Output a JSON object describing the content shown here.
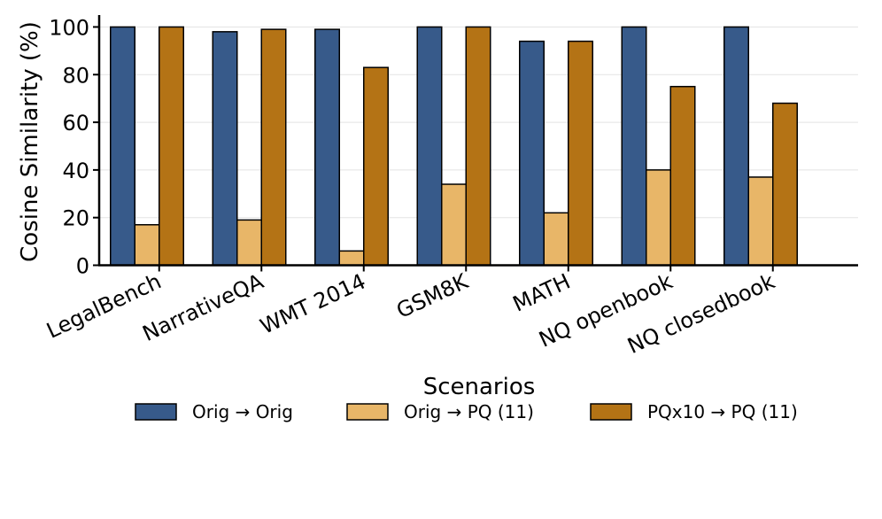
{
  "chart_data": {
    "type": "bar",
    "title": "",
    "xlabel": "Scenarios",
    "ylabel": "Cosine Similarity (%)",
    "ylim": [
      0,
      105
    ],
    "yticks": [
      0,
      20,
      40,
      60,
      80,
      100
    ],
    "ytick_labels": [
      "0",
      "20",
      "40",
      "60",
      "80",
      "100"
    ],
    "grid": "horizontal",
    "legend_position": "below",
    "categories": [
      "LegalBench",
      "NarrativeQA",
      "WMT 2014",
      "GSM8K",
      "MATH",
      "NQ openbook",
      "NQ closedbook"
    ],
    "series": [
      {
        "name": "Orig → Orig",
        "color": "#375a8a",
        "values": [
          100,
          98,
          99,
          100,
          94,
          100,
          100
        ]
      },
      {
        "name": "Orig → PQ (11)",
        "color": "#e8b668",
        "values": [
          17,
          19,
          6,
          34,
          22,
          40,
          37
        ]
      },
      {
        "name": "PQx10 → PQ (11)",
        "color": "#b47315",
        "values": [
          100,
          99,
          83,
          100,
          94,
          75,
          68
        ]
      }
    ]
  }
}
